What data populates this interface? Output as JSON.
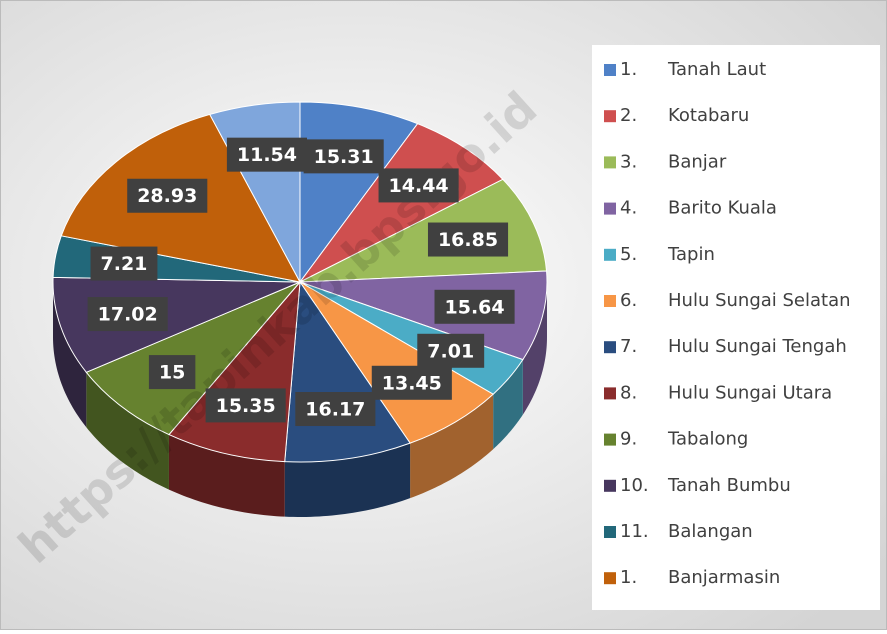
{
  "chart_data": {
    "type": "pie",
    "categories": [
      "Tanah Laut",
      "Kotabaru",
      "Banjar",
      "Barito Kuala",
      "Tapin",
      "Hulu Sungai Selatan",
      "Hulu Sungai Tengah",
      "Hulu Sungai Utara",
      "Tabalong",
      "Tanah Bumbu",
      "Balangan",
      "Banjarmasin",
      null
    ],
    "category_numbers": [
      "1.",
      "2.",
      "3.",
      "4.",
      "5.",
      "6.",
      "7.",
      "8.",
      "9.",
      "10.",
      "11.",
      "1.",
      null
    ],
    "values": [
      15.31,
      14.44,
      16.85,
      15.64,
      7.01,
      13.45,
      16.17,
      15.35,
      15,
      17.02,
      7.21,
      28.93,
      11.54
    ],
    "colors": [
      "#4f81c7",
      "#cf4f4f",
      "#9bbb59",
      "#8064a2",
      "#4bacc6",
      "#f79646",
      "#2a4d7f",
      "#8a2c2c",
      "#66822f",
      "#47375e",
      "#22687a",
      "#c0600a",
      "#7fa6dc"
    ],
    "legend": "right",
    "watermark": "https://tapinkab.bps.go.id"
  }
}
